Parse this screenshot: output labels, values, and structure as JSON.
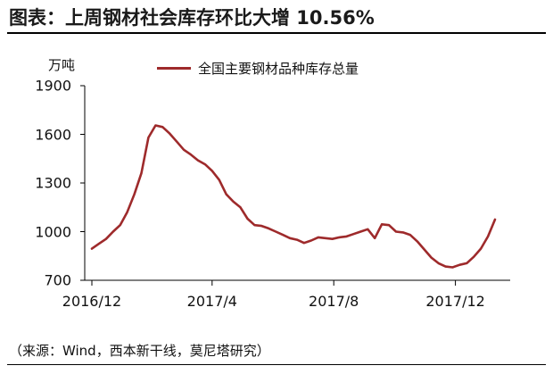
{
  "figure": {
    "title": "图表：上周钢材社会库存环比大增 10.56%",
    "unit": "万吨",
    "source": "（来源：Wind，西本新干线，莫尼塔研究）"
  },
  "colors": {
    "series": "#9e2a2b",
    "axis": "#000000"
  },
  "chart_data": {
    "type": "line",
    "title": "图表：上周钢材社会库存环比大增 10.56%",
    "ylabel": "万吨",
    "xlabel": "",
    "ylim": [
      700,
      1900
    ],
    "y_ticks": [
      700,
      1000,
      1300,
      1600,
      1900
    ],
    "x_tick_labels": [
      {
        "label": "2016/12",
        "x": 0
      },
      {
        "label": "2017/4",
        "x": 17
      },
      {
        "label": "2017/8",
        "x": 34.2
      },
      {
        "label": "2017/12",
        "x": 51.4
      }
    ],
    "x_unit": "weeks since 2016/12",
    "grid": false,
    "legend": "top",
    "series": [
      {
        "name": "全国主要钢材品种库存总量",
        "x": [
          0,
          1,
          2,
          3,
          4,
          5,
          6,
          7,
          8,
          9,
          10,
          11,
          12,
          13,
          14,
          15,
          16,
          17,
          18,
          19,
          20,
          21,
          22,
          23,
          24,
          25,
          26,
          27,
          28,
          29,
          30,
          31,
          32,
          33,
          34,
          35,
          36,
          37,
          38,
          39,
          40,
          41,
          42,
          43,
          44,
          45,
          46,
          47,
          48,
          49,
          50,
          51,
          52,
          53,
          54,
          55,
          56,
          57
        ],
        "values": [
          895,
          925,
          955,
          1000,
          1040,
          1120,
          1230,
          1360,
          1580,
          1655,
          1645,
          1605,
          1555,
          1505,
          1475,
          1440,
          1415,
          1375,
          1320,
          1230,
          1185,
          1150,
          1080,
          1040,
          1035,
          1020,
          1000,
          980,
          960,
          950,
          930,
          945,
          965,
          960,
          955,
          965,
          970,
          985,
          1000,
          1015,
          960,
          1045,
          1040,
          1000,
          995,
          980,
          940,
          890,
          840,
          805,
          785,
          780,
          795,
          805,
          845,
          895,
          970,
          1075
        ]
      }
    ]
  }
}
